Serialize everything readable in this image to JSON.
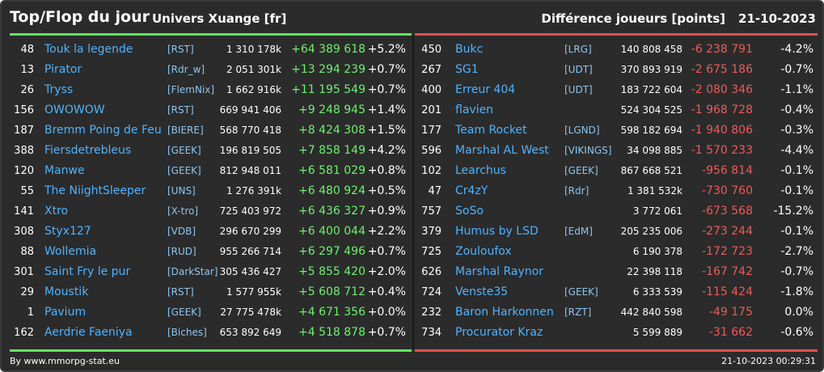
{
  "header": {
    "title": "Top/Flop du jour",
    "universe": "Univers Xuange [fr]",
    "metric": "Différence joueurs [points]",
    "date": "21-10-2023"
  },
  "colors": {
    "background": "#2b2b2b",
    "top_accent": "#5fe65f",
    "flop_accent": "#e05050",
    "name_link": "#4fb3ff",
    "positive": "#6ef06e",
    "negative": "#ef5a5a"
  },
  "top": [
    {
      "rank": "48",
      "name": "Touk la legende",
      "tag": "[RST]",
      "score": "1 310 178k",
      "diff": "+64 389 618",
      "pct": "+5.2%"
    },
    {
      "rank": "13",
      "name": "Pirator",
      "tag": "[Rdr_w]",
      "score": "2 051 301k",
      "diff": "+13 294 239",
      "pct": "+0.7%"
    },
    {
      "rank": "26",
      "name": "Tryss",
      "tag": "[FlemNix]",
      "score": "1 662 916k",
      "diff": "+11 195 549",
      "pct": "+0.7%"
    },
    {
      "rank": "156",
      "name": "OWOWOW",
      "tag": "[RST]",
      "score": "669 941 406",
      "diff": "+9 248 945",
      "pct": "+1.4%"
    },
    {
      "rank": "187",
      "name": "Bremm Poing de Feu",
      "tag": "[BIERE]",
      "score": "568 770 418",
      "diff": "+8 424 308",
      "pct": "+1.5%"
    },
    {
      "rank": "388",
      "name": "Fiersdetrebleus",
      "tag": "[GEEK]",
      "score": "196 819 505",
      "diff": "+7 858 149",
      "pct": "+4.2%"
    },
    {
      "rank": "120",
      "name": "Manwe",
      "tag": "[GEEK]",
      "score": "812 948 011",
      "diff": "+6 581 029",
      "pct": "+0.8%"
    },
    {
      "rank": "55",
      "name": "The NiightSleeper",
      "tag": "[UNS]",
      "score": "1 276 391k",
      "diff": "+6 480 924",
      "pct": "+0.5%"
    },
    {
      "rank": "141",
      "name": "Xtro",
      "tag": "[X-tro]",
      "score": "725 403 972",
      "diff": "+6 436 327",
      "pct": "+0.9%"
    },
    {
      "rank": "308",
      "name": "Styx127",
      "tag": "[VDB]",
      "score": "296 670 299",
      "diff": "+6 400 044",
      "pct": "+2.2%"
    },
    {
      "rank": "88",
      "name": "Wollemia",
      "tag": "[RUD]",
      "score": "955 266 714",
      "diff": "+6 297 496",
      "pct": "+0.7%"
    },
    {
      "rank": "301",
      "name": "Saint Fry le pur",
      "tag": "[DarkStar]",
      "score": "305 436 427",
      "diff": "+5 855 420",
      "pct": "+2.0%"
    },
    {
      "rank": "29",
      "name": "Moustik",
      "tag": "[RST]",
      "score": "1 577 955k",
      "diff": "+5 608 712",
      "pct": "+0.4%"
    },
    {
      "rank": "1",
      "name": "Pavium",
      "tag": "[GEEK]",
      "score": "27 775 478k",
      "diff": "+4 671 356",
      "pct": "+0.0%"
    },
    {
      "rank": "162",
      "name": "Aerdrie Faeniya",
      "tag": "[Biches]",
      "score": "653 892 649",
      "diff": "+4 518 878",
      "pct": "+0.7%"
    }
  ],
  "flop": [
    {
      "rank": "450",
      "name": "Bukc",
      "tag": "[LRG]",
      "score": "140 808 458",
      "diff": "-6 238 791",
      "pct": "-4.2%"
    },
    {
      "rank": "267",
      "name": "SG1",
      "tag": "[UDT]",
      "score": "370 893 919",
      "diff": "-2 675 186",
      "pct": "-0.7%"
    },
    {
      "rank": "400",
      "name": "Erreur 404",
      "tag": "[UDT]",
      "score": "183 722 604",
      "diff": "-2 080 346",
      "pct": "-1.1%"
    },
    {
      "rank": "201",
      "name": "flavien",
      "tag": "",
      "score": "524 304 525",
      "diff": "-1 968 728",
      "pct": "-0.4%"
    },
    {
      "rank": "177",
      "name": "Team Rocket",
      "tag": "[LGND]",
      "score": "598 182 694",
      "diff": "-1 940 806",
      "pct": "-0.3%"
    },
    {
      "rank": "596",
      "name": "Marshal AL West",
      "tag": "[VIKINGS]",
      "score": "34 098 885",
      "diff": "-1 570 233",
      "pct": "-4.4%"
    },
    {
      "rank": "102",
      "name": "Learchus",
      "tag": "[GEEK]",
      "score": "867 668 521",
      "diff": "-956 814",
      "pct": "-0.1%"
    },
    {
      "rank": "47",
      "name": "Cr4zY",
      "tag": "[Rdr]",
      "score": "1 381 532k",
      "diff": "-730 760",
      "pct": "-0.1%"
    },
    {
      "rank": "757",
      "name": "SoSo",
      "tag": "",
      "score": "3 772 061",
      "diff": "-673 568",
      "pct": "-15.2%"
    },
    {
      "rank": "379",
      "name": "Humus by LSD",
      "tag": "[EdM]",
      "score": "205 235 006",
      "diff": "-273 244",
      "pct": "-0.1%"
    },
    {
      "rank": "725",
      "name": "Zouloufox",
      "tag": "",
      "score": "6 190 378",
      "diff": "-172 723",
      "pct": "-2.7%"
    },
    {
      "rank": "626",
      "name": "Marshal Raynor",
      "tag": "",
      "score": "22 398 118",
      "diff": "-167 742",
      "pct": "-0.7%"
    },
    {
      "rank": "724",
      "name": "Venste35",
      "tag": "[GEEK]",
      "score": "6 333 539",
      "diff": "-115 424",
      "pct": "-1.8%"
    },
    {
      "rank": "232",
      "name": "Baron Harkonnen",
      "tag": "[RZT]",
      "score": "442 840 598",
      "diff": "-49 175",
      "pct": "0.0%"
    },
    {
      "rank": "734",
      "name": "Procurator Kraz",
      "tag": "",
      "score": "5 599 889",
      "diff": "-31 662",
      "pct": "-0.6%"
    }
  ],
  "footer": {
    "source": "By www.mmorpg-stat.eu",
    "timestamp": "21-10-2023 00:29:31"
  }
}
